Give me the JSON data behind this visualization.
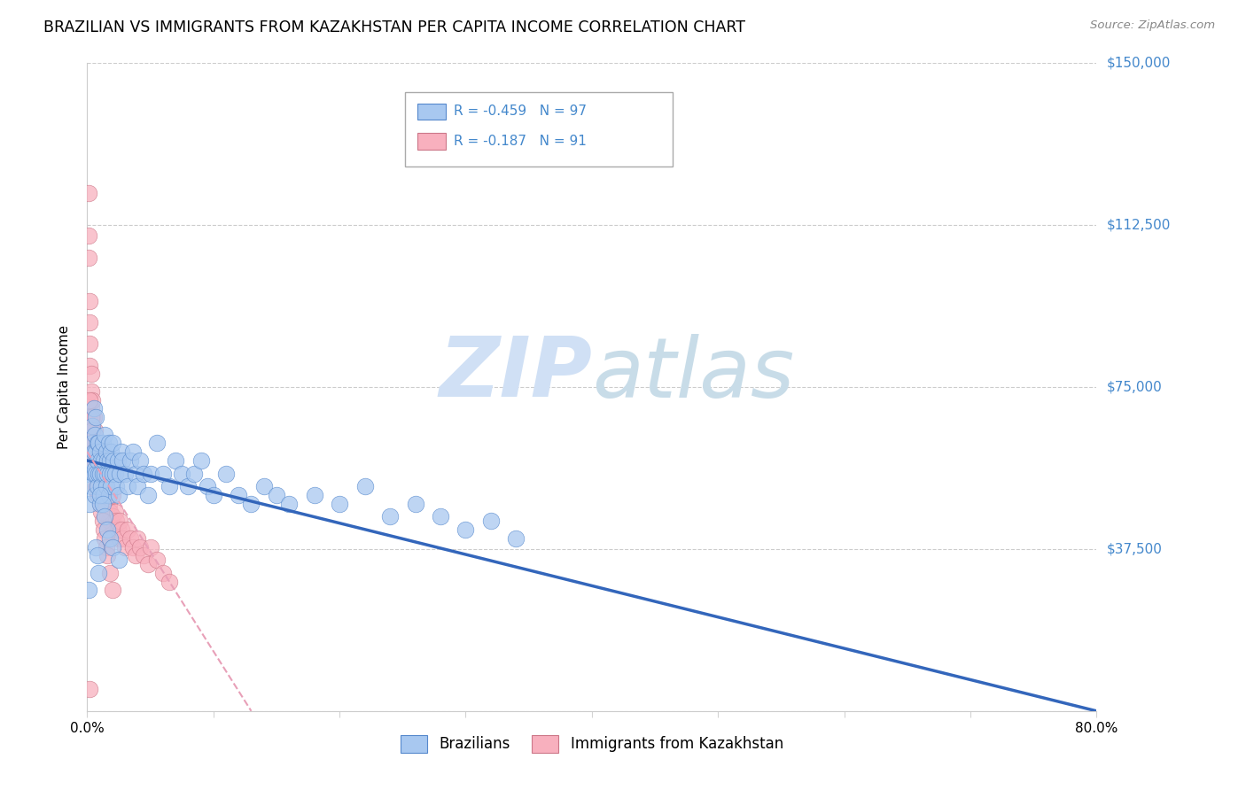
{
  "title": "BRAZILIAN VS IMMIGRANTS FROM KAZAKHSTAN PER CAPITA INCOME CORRELATION CHART",
  "source": "Source: ZipAtlas.com",
  "ylabel": "Per Capita Income",
  "xlim": [
    0.0,
    0.8
  ],
  "ylim": [
    0,
    150000
  ],
  "yticks": [
    0,
    37500,
    75000,
    112500,
    150000
  ],
  "ytick_labels": [
    "",
    "$37,500",
    "$75,000",
    "$112,500",
    "$150,000"
  ],
  "xticks": [
    0.0,
    0.1,
    0.2,
    0.3,
    0.4,
    0.5,
    0.6,
    0.7,
    0.8
  ],
  "xtick_labels": [
    "0.0%",
    "",
    "",
    "",
    "",
    "",
    "",
    "",
    "80.0%"
  ],
  "legend_r1": "R = -0.459",
  "legend_n1": "N = 97",
  "legend_r2": "R = -0.187",
  "legend_n2": "N = 91",
  "blue_color": "#a8c8f0",
  "pink_color": "#f8b0be",
  "trend_blue": "#3366bb",
  "trend_pink": "#e8a0b8",
  "watermark_color": "#d0e0f5",
  "axis_label_color": "#4488cc",
  "brazil_x": [
    0.001,
    0.002,
    0.002,
    0.003,
    0.003,
    0.004,
    0.004,
    0.005,
    0.005,
    0.005,
    0.006,
    0.006,
    0.006,
    0.007,
    0.007,
    0.007,
    0.008,
    0.008,
    0.008,
    0.009,
    0.009,
    0.01,
    0.01,
    0.01,
    0.011,
    0.011,
    0.012,
    0.012,
    0.013,
    0.013,
    0.014,
    0.014,
    0.015,
    0.015,
    0.016,
    0.016,
    0.017,
    0.017,
    0.018,
    0.018,
    0.019,
    0.019,
    0.02,
    0.02,
    0.021,
    0.022,
    0.023,
    0.024,
    0.025,
    0.026,
    0.027,
    0.028,
    0.03,
    0.032,
    0.034,
    0.036,
    0.038,
    0.04,
    0.042,
    0.045,
    0.048,
    0.05,
    0.055,
    0.06,
    0.065,
    0.07,
    0.075,
    0.08,
    0.085,
    0.09,
    0.095,
    0.1,
    0.11,
    0.12,
    0.13,
    0.14,
    0.15,
    0.16,
    0.18,
    0.2,
    0.22,
    0.24,
    0.26,
    0.28,
    0.3,
    0.32,
    0.34,
    0.007,
    0.008,
    0.009,
    0.01,
    0.012,
    0.014,
    0.016,
    0.018,
    0.02,
    0.025
  ],
  "brazil_y": [
    28000,
    48000,
    55000,
    52000,
    58000,
    62000,
    66000,
    55000,
    60000,
    70000,
    50000,
    56000,
    64000,
    55000,
    60000,
    68000,
    52000,
    58000,
    62000,
    55000,
    62000,
    48000,
    55000,
    60000,
    52000,
    58000,
    55000,
    62000,
    50000,
    58000,
    55000,
    64000,
    52000,
    60000,
    55000,
    58000,
    50000,
    62000,
    55000,
    58000,
    52000,
    60000,
    55000,
    62000,
    58000,
    55000,
    52000,
    58000,
    50000,
    55000,
    60000,
    58000,
    55000,
    52000,
    58000,
    60000,
    55000,
    52000,
    58000,
    55000,
    50000,
    55000,
    62000,
    55000,
    52000,
    58000,
    55000,
    52000,
    55000,
    58000,
    52000,
    50000,
    55000,
    50000,
    48000,
    52000,
    50000,
    48000,
    50000,
    48000,
    52000,
    45000,
    48000,
    45000,
    42000,
    44000,
    40000,
    38000,
    36000,
    32000,
    50000,
    48000,
    45000,
    42000,
    40000,
    38000,
    35000
  ],
  "kaz_x": [
    0.001,
    0.001,
    0.001,
    0.002,
    0.002,
    0.002,
    0.002,
    0.003,
    0.003,
    0.003,
    0.003,
    0.004,
    0.004,
    0.004,
    0.005,
    0.005,
    0.005,
    0.006,
    0.006,
    0.006,
    0.007,
    0.007,
    0.007,
    0.008,
    0.008,
    0.008,
    0.009,
    0.009,
    0.01,
    0.01,
    0.01,
    0.011,
    0.011,
    0.012,
    0.012,
    0.013,
    0.013,
    0.014,
    0.014,
    0.015,
    0.015,
    0.016,
    0.016,
    0.017,
    0.017,
    0.018,
    0.019,
    0.02,
    0.02,
    0.021,
    0.022,
    0.023,
    0.024,
    0.025,
    0.026,
    0.027,
    0.028,
    0.03,
    0.032,
    0.034,
    0.036,
    0.038,
    0.04,
    0.042,
    0.045,
    0.048,
    0.05,
    0.055,
    0.06,
    0.065,
    0.001,
    0.002,
    0.002,
    0.003,
    0.003,
    0.004,
    0.005,
    0.006,
    0.007,
    0.008,
    0.009,
    0.01,
    0.011,
    0.012,
    0.013,
    0.014,
    0.015,
    0.016,
    0.018,
    0.02,
    0.002
  ],
  "kaz_y": [
    120000,
    110000,
    105000,
    95000,
    90000,
    85000,
    80000,
    78000,
    74000,
    70000,
    66000,
    72000,
    68000,
    62000,
    68000,
    62000,
    58000,
    65000,
    60000,
    55000,
    62000,
    58000,
    52000,
    58000,
    55000,
    50000,
    55000,
    52000,
    58000,
    55000,
    50000,
    52000,
    48000,
    55000,
    50000,
    52000,
    48000,
    55000,
    50000,
    52000,
    48000,
    50000,
    45000,
    48000,
    44000,
    46000,
    44000,
    50000,
    45000,
    42000,
    46000,
    44000,
    42000,
    40000,
    44000,
    42000,
    40000,
    38000,
    42000,
    40000,
    38000,
    36000,
    40000,
    38000,
    36000,
    34000,
    38000,
    35000,
    32000,
    30000,
    68000,
    72000,
    65000,
    68000,
    62000,
    65000,
    60000,
    58000,
    55000,
    52000,
    50000,
    48000,
    46000,
    44000,
    42000,
    40000,
    38000,
    36000,
    32000,
    28000,
    5000
  ],
  "brazil_trend_x0": 0.0,
  "brazil_trend_y0": 58000,
  "brazil_trend_x1": 0.8,
  "brazil_trend_y1": 0,
  "kaz_trend_x0": 0.0,
  "kaz_trend_y0": 60000,
  "kaz_trend_x1": 0.13,
  "kaz_trend_y1": 0
}
